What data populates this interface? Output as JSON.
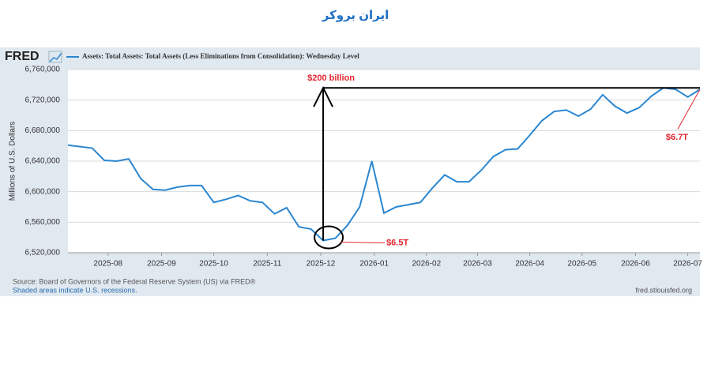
{
  "header": {
    "brand": "ایران بروکر"
  },
  "chart_data": {
    "type": "line",
    "logo": "FRED",
    "y_label": "Millions of U.S. Dollars",
    "source": "Source: Board of Governors of the Federal Reserve System (US) via FRED®",
    "note": "Shaded areas indicate U.S. recessions.",
    "site": "fred.stlouisfed.org",
    "grid": true,
    "series": [
      {
        "name": "Assets: Total Assets: Total Assets (Less Eliminations from Consolidation): Wednesday Level",
        "color": "#2b87d1",
        "values": [
          6661000,
          6659000,
          6657000,
          6641000,
          6640000,
          6643000,
          6617000,
          6603000,
          6602000,
          6606000,
          6608000,
          6608000,
          6586000,
          6590000,
          6595000,
          6588000,
          6586000,
          6571000,
          6579000,
          6554000,
          6551000,
          6536000,
          6539000,
          6556000,
          6580000,
          6640000,
          6572000,
          6580000,
          6583000,
          6586000,
          6605000,
          6622000,
          6613000,
          6613000,
          6628000,
          6646000,
          6655000,
          6656000,
          6674000,
          6693000,
          6705000,
          6707000,
          6699000,
          6708000,
          6727000,
          6712000,
          6703000,
          6710000,
          6725000,
          6736000,
          6734000,
          6724000,
          6734000
        ]
      }
    ],
    "xlim": [
      0,
      52
    ],
    "xticks": [
      {
        "value": 3.3,
        "label": "2025-08"
      },
      {
        "value": 7.7,
        "label": "2025-09"
      },
      {
        "value": 12,
        "label": "2025-10"
      },
      {
        "value": 16.4,
        "label": "2025-11"
      },
      {
        "value": 20.8,
        "label": "2025-12"
      },
      {
        "value": 25.2,
        "label": "2026-01"
      },
      {
        "value": 29.5,
        "label": "2026-02"
      },
      {
        "value": 33.7,
        "label": "2026-03"
      },
      {
        "value": 38,
        "label": "2026-04"
      },
      {
        "value": 42.3,
        "label": "2026-05"
      },
      {
        "value": 46.7,
        "label": "2026-06"
      },
      {
        "value": 51,
        "label": "2026-07"
      }
    ],
    "ylim": [
      6520000,
      6760000
    ],
    "yticks": [
      {
        "value": 6520000,
        "label": "6,520,000"
      },
      {
        "value": 6560000,
        "label": "6,560,000"
      },
      {
        "value": 6600000,
        "label": "6,600,000"
      },
      {
        "value": 6640000,
        "label": "6,640,000"
      },
      {
        "value": 6680000,
        "label": "6,680,000"
      },
      {
        "value": 6720000,
        "label": "6,720,000"
      },
      {
        "value": 6760000,
        "label": "6,760,000"
      }
    ],
    "annotations": {
      "range": "$200 billion",
      "low": "$6.5T",
      "high": "$6.7T"
    }
  }
}
